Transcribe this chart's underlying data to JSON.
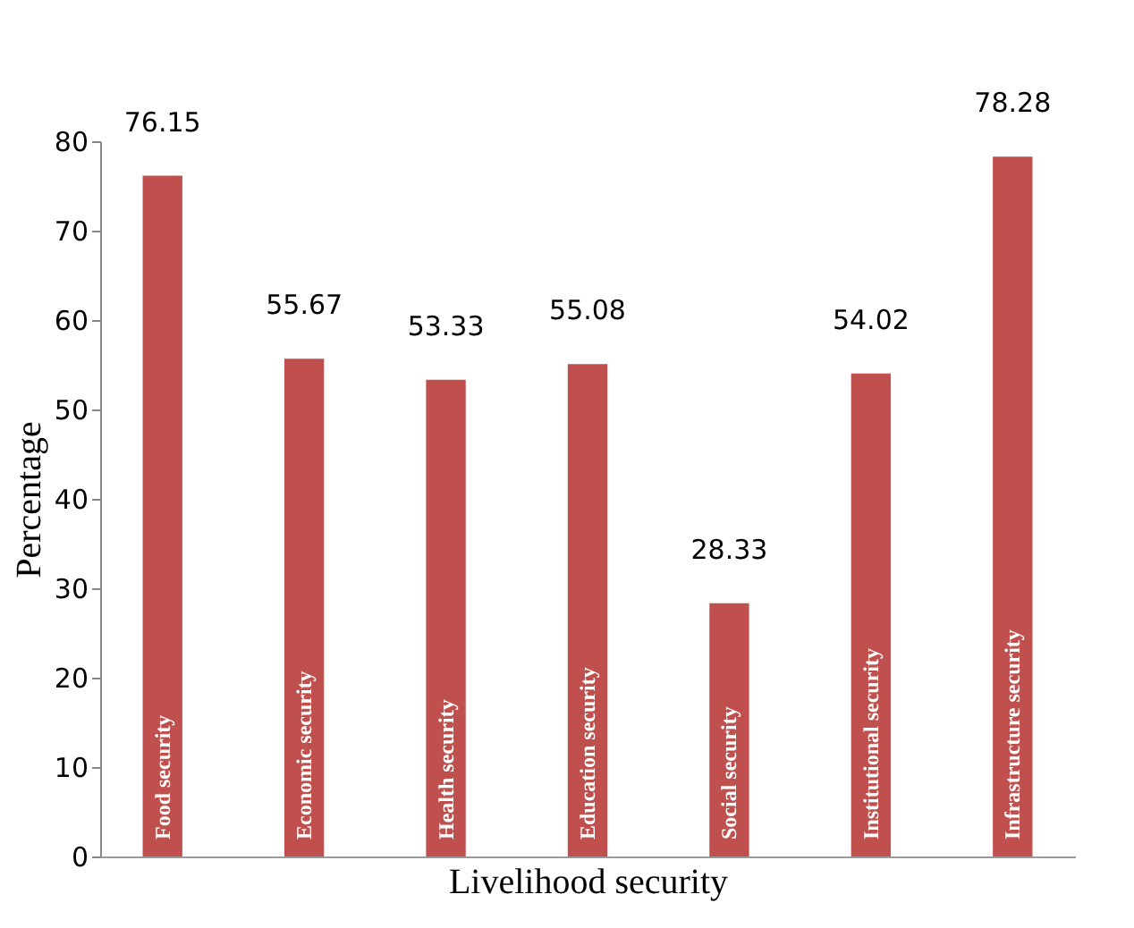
{
  "chart_data": {
    "type": "bar",
    "xlabel": "Livelihood security",
    "ylabel": "Percentage",
    "categories": [
      "Food security",
      "Economic security",
      "Health security",
      "Education security",
      "Social security",
      "Institutional security",
      "Infrastructure security"
    ],
    "values": [
      76.15,
      55.67,
      53.33,
      55.08,
      28.33,
      54.02,
      78.28
    ],
    "color": "#c0504d",
    "ylim": [
      0,
      80
    ],
    "yticks": [
      0,
      10,
      20,
      30,
      40,
      50,
      60,
      70,
      80
    ],
    "grid": false,
    "data_labels": true
  }
}
